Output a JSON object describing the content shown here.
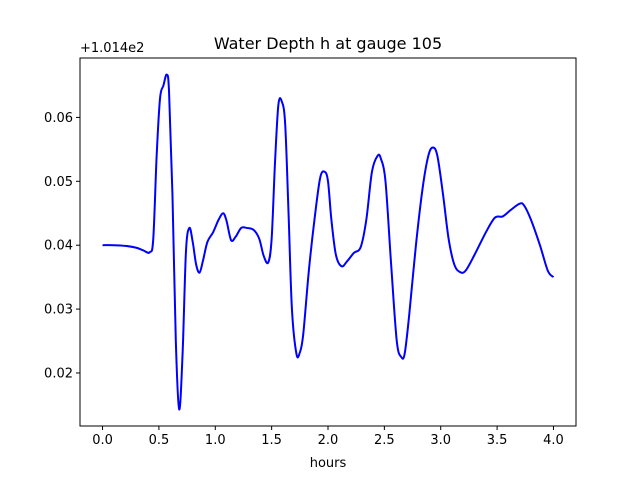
{
  "chart_data": {
    "type": "line",
    "title": "Water Depth h at gauge 105",
    "xlabel": "hours",
    "ylabel": "",
    "offset_label": "+1.014e2",
    "xlim": [
      -0.2,
      4.2
    ],
    "ylim": [
      0.0117,
      0.0693
    ],
    "x_ticks": [
      0.0,
      0.5,
      1.0,
      1.5,
      2.0,
      2.5,
      3.0,
      3.5,
      4.0
    ],
    "x_tick_labels": [
      "0.0",
      "0.5",
      "1.0",
      "1.5",
      "2.0",
      "2.5",
      "3.0",
      "3.5",
      "4.0"
    ],
    "y_ticks": [
      0.02,
      0.03,
      0.04,
      0.05,
      0.06
    ],
    "y_tick_labels": [
      "0.02",
      "0.03",
      "0.04",
      "0.05",
      "0.06"
    ],
    "grid": false,
    "legend": "none",
    "series": [
      {
        "color": "#0000ff",
        "points": [
          [
            0.0,
            0.04
          ],
          [
            0.1,
            0.04
          ],
          [
            0.2,
            0.0399
          ],
          [
            0.3,
            0.0396
          ],
          [
            0.36,
            0.0392
          ],
          [
            0.42,
            0.0389
          ],
          [
            0.45,
            0.041
          ],
          [
            0.48,
            0.054
          ],
          [
            0.51,
            0.063
          ],
          [
            0.54,
            0.065
          ],
          [
            0.57,
            0.0667
          ],
          [
            0.59,
            0.064
          ],
          [
            0.62,
            0.048
          ],
          [
            0.65,
            0.025
          ],
          [
            0.68,
            0.0143
          ],
          [
            0.71,
            0.023
          ],
          [
            0.74,
            0.039
          ],
          [
            0.77,
            0.0427
          ],
          [
            0.8,
            0.0405
          ],
          [
            0.83,
            0.037
          ],
          [
            0.86,
            0.0357
          ],
          [
            0.89,
            0.0375
          ],
          [
            0.93,
            0.0405
          ],
          [
            0.98,
            0.042
          ],
          [
            1.03,
            0.044
          ],
          [
            1.07,
            0.045
          ],
          [
            1.1,
            0.0438
          ],
          [
            1.14,
            0.0408
          ],
          [
            1.18,
            0.0413
          ],
          [
            1.23,
            0.0427
          ],
          [
            1.28,
            0.0427
          ],
          [
            1.34,
            0.0424
          ],
          [
            1.39,
            0.041
          ],
          [
            1.43,
            0.0383
          ],
          [
            1.47,
            0.0373
          ],
          [
            1.5,
            0.041
          ],
          [
            1.53,
            0.053
          ],
          [
            1.56,
            0.062
          ],
          [
            1.59,
            0.0625
          ],
          [
            1.62,
            0.059
          ],
          [
            1.65,
            0.045
          ],
          [
            1.68,
            0.03
          ],
          [
            1.72,
            0.023
          ],
          [
            1.75,
            0.0232
          ],
          [
            1.78,
            0.026
          ],
          [
            1.83,
            0.036
          ],
          [
            1.88,
            0.044
          ],
          [
            1.93,
            0.0505
          ],
          [
            1.97,
            0.0515
          ],
          [
            2.0,
            0.05
          ],
          [
            2.03,
            0.044
          ],
          [
            2.07,
            0.0385
          ],
          [
            2.12,
            0.0367
          ],
          [
            2.17,
            0.0375
          ],
          [
            2.23,
            0.0388
          ],
          [
            2.29,
            0.0397
          ],
          [
            2.34,
            0.044
          ],
          [
            2.39,
            0.0515
          ],
          [
            2.44,
            0.054
          ],
          [
            2.47,
            0.0535
          ],
          [
            2.51,
            0.05
          ],
          [
            2.56,
            0.037
          ],
          [
            2.61,
            0.025
          ],
          [
            2.65,
            0.0225
          ],
          [
            2.68,
            0.023
          ],
          [
            2.72,
            0.029
          ],
          [
            2.78,
            0.04
          ],
          [
            2.84,
            0.049
          ],
          [
            2.89,
            0.054
          ],
          [
            2.93,
            0.0553
          ],
          [
            2.97,
            0.054
          ],
          [
            3.02,
            0.048
          ],
          [
            3.07,
            0.041
          ],
          [
            3.12,
            0.037
          ],
          [
            3.17,
            0.0358
          ],
          [
            3.22,
            0.036
          ],
          [
            3.3,
            0.0385
          ],
          [
            3.4,
            0.042
          ],
          [
            3.48,
            0.0443
          ],
          [
            3.55,
            0.0445
          ],
          [
            3.62,
            0.0455
          ],
          [
            3.7,
            0.0465
          ],
          [
            3.74,
            0.0462
          ],
          [
            3.8,
            0.044
          ],
          [
            3.88,
            0.04
          ],
          [
            3.95,
            0.036
          ],
          [
            4.0,
            0.035
          ]
        ]
      }
    ]
  }
}
